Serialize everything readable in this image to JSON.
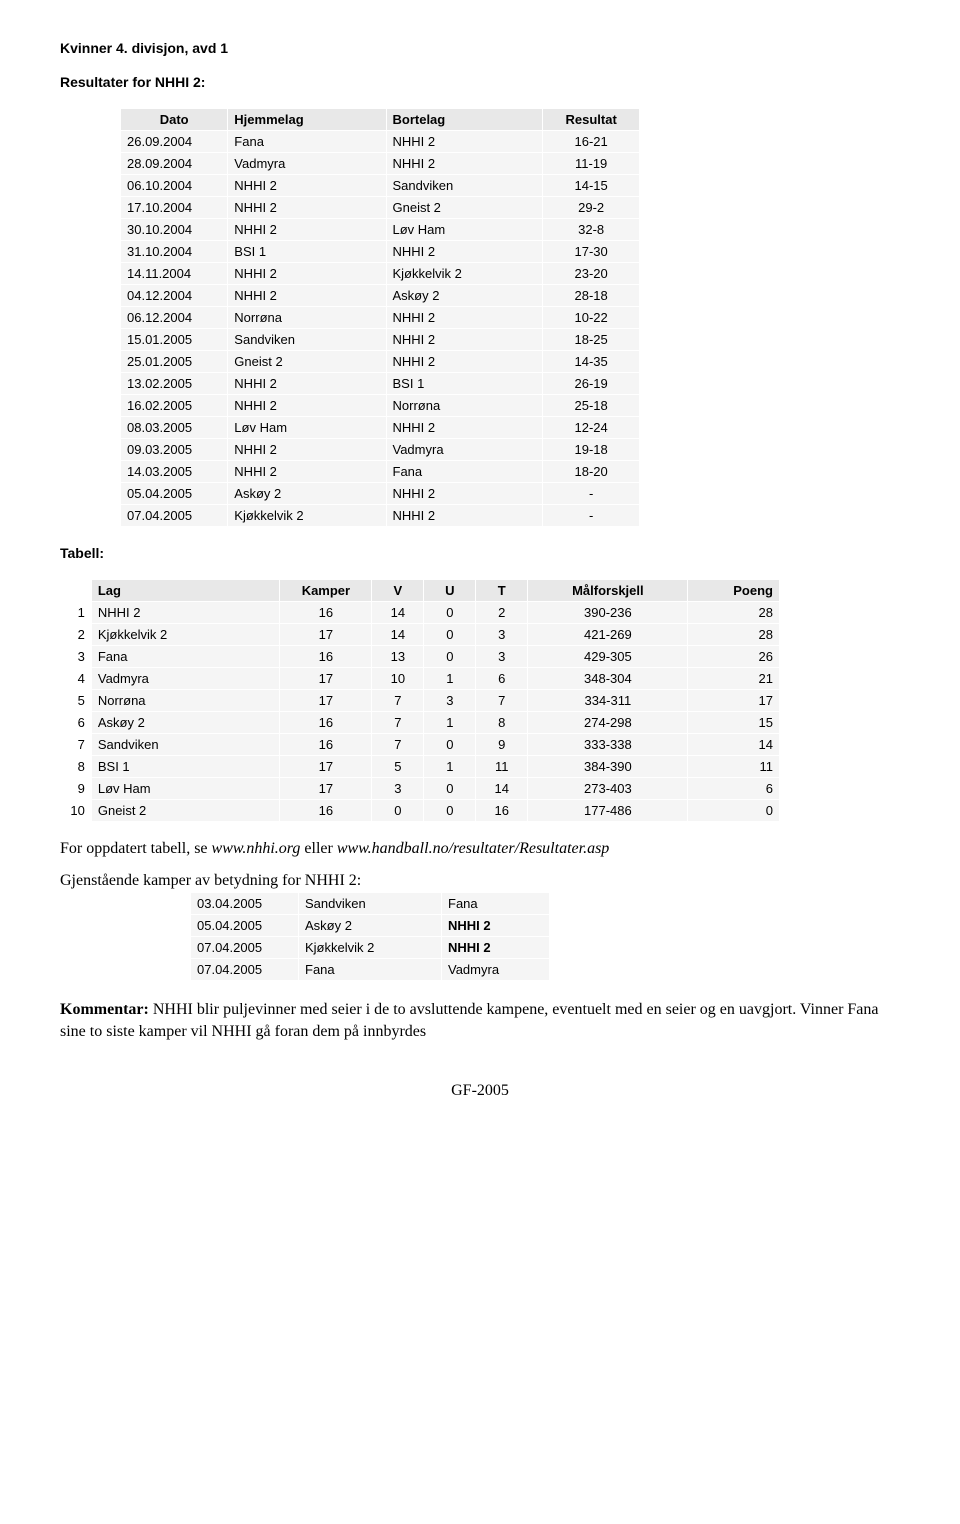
{
  "title": "Kvinner 4. divisjon, avd 1",
  "results_heading": "Resultater for NHHI 2:",
  "results_columns": {
    "date": "Dato",
    "home": "Hjemmelag",
    "away": "Bortelag",
    "result": "Resultat"
  },
  "results": [
    {
      "date": "26.09.2004",
      "home": "Fana",
      "away": "NHHI 2",
      "result": "16-21"
    },
    {
      "date": "28.09.2004",
      "home": "Vadmyra",
      "away": "NHHI 2",
      "result": "11-19"
    },
    {
      "date": "06.10.2004",
      "home": "NHHI 2",
      "away": "Sandviken",
      "result": "14-15"
    },
    {
      "date": "17.10.2004",
      "home": "NHHI 2",
      "away": "Gneist 2",
      "result": "29-2"
    },
    {
      "date": "30.10.2004",
      "home": "NHHI 2",
      "away": "Løv Ham",
      "result": "32-8"
    },
    {
      "date": "31.10.2004",
      "home": "BSI 1",
      "away": "NHHI 2",
      "result": "17-30"
    },
    {
      "date": "14.11.2004",
      "home": "NHHI 2",
      "away": "Kjøkkelvik 2",
      "result": "23-20"
    },
    {
      "date": "04.12.2004",
      "home": "NHHI 2",
      "away": "Askøy 2",
      "result": "28-18"
    },
    {
      "date": "06.12.2004",
      "home": "Norrøna",
      "away": "NHHI 2",
      "result": "10-22"
    },
    {
      "date": "15.01.2005",
      "home": "Sandviken",
      "away": "NHHI 2",
      "result": "18-25"
    },
    {
      "date": "25.01.2005",
      "home": "Gneist 2",
      "away": "NHHI 2",
      "result": "14-35"
    },
    {
      "date": "13.02.2005",
      "home": "NHHI 2",
      "away": "BSI 1",
      "result": "26-19"
    },
    {
      "date": "16.02.2005",
      "home": "NHHI 2",
      "away": "Norrøna",
      "result": "25-18"
    },
    {
      "date": "08.03.2005",
      "home": "Løv Ham",
      "away": "NHHI 2",
      "result": "12-24"
    },
    {
      "date": "09.03.2005",
      "home": "NHHI 2",
      "away": "Vadmyra",
      "result": "19-18"
    },
    {
      "date": "14.03.2005",
      "home": "NHHI 2",
      "away": "Fana",
      "result": "18-20"
    },
    {
      "date": "05.04.2005",
      "home": "Askøy 2",
      "away": "NHHI 2",
      "result": "-"
    },
    {
      "date": "07.04.2005",
      "home": "Kjøkkelvik 2",
      "away": "NHHI 2",
      "result": "-"
    }
  ],
  "standings_heading": "Tabell:",
  "standings_columns": {
    "team": "Lag",
    "played": "Kamper",
    "w": "V",
    "d": "U",
    "l": "T",
    "gd": "Målforskjell",
    "pts": "Poeng"
  },
  "standings": [
    {
      "rank": "1",
      "team": "NHHI 2",
      "p": "16",
      "w": "14",
      "d": "0",
      "l": "2",
      "gd": "390-236",
      "pts": "28"
    },
    {
      "rank": "2",
      "team": "Kjøkkelvik 2",
      "p": "17",
      "w": "14",
      "d": "0",
      "l": "3",
      "gd": "421-269",
      "pts": "28"
    },
    {
      "rank": "3",
      "team": "Fana",
      "p": "16",
      "w": "13",
      "d": "0",
      "l": "3",
      "gd": "429-305",
      "pts": "26"
    },
    {
      "rank": "4",
      "team": "Vadmyra",
      "p": "17",
      "w": "10",
      "d": "1",
      "l": "6",
      "gd": "348-304",
      "pts": "21"
    },
    {
      "rank": "5",
      "team": "Norrøna",
      "p": "17",
      "w": "7",
      "d": "3",
      "l": "7",
      "gd": "334-311",
      "pts": "17"
    },
    {
      "rank": "6",
      "team": "Askøy 2",
      "p": "16",
      "w": "7",
      "d": "1",
      "l": "8",
      "gd": "274-298",
      "pts": "15"
    },
    {
      "rank": "7",
      "team": "Sandviken",
      "p": "16",
      "w": "7",
      "d": "0",
      "l": "9",
      "gd": "333-338",
      "pts": "14"
    },
    {
      "rank": "8",
      "team": "BSI 1",
      "p": "17",
      "w": "5",
      "d": "1",
      "l": "11",
      "gd": "384-390",
      "pts": "11"
    },
    {
      "rank": "9",
      "team": "Løv Ham",
      "p": "17",
      "w": "3",
      "d": "0",
      "l": "14",
      "gd": "273-403",
      "pts": "6"
    },
    {
      "rank": "10",
      "team": "Gneist 2",
      "p": "16",
      "w": "0",
      "d": "0",
      "l": "16",
      "gd": "177-486",
      "pts": "0"
    }
  ],
  "note_prefix": "For oppdatert tabell, se ",
  "note_link1": "www.nhhi.org",
  "note_mid": " eller ",
  "note_link2": "www.handball.no/resultater/Resultater.asp",
  "remaining_heading": "Gjenstående kamper av betydning for NHHI 2:",
  "remaining": [
    {
      "date": "03.04.2005",
      "home": "Sandviken",
      "away": "Fana",
      "bold": false
    },
    {
      "date": "05.04.2005",
      "home": "Askøy 2",
      "away": "NHHI 2",
      "bold": true
    },
    {
      "date": "07.04.2005",
      "home": "Kjøkkelvik 2",
      "away": "NHHI 2",
      "bold": true
    },
    {
      "date": "07.04.2005",
      "home": "Fana",
      "away": "Vadmyra",
      "bold": false
    }
  ],
  "comment_label": "Kommentar:",
  "comment_body": " NHHI blir puljevinner med seier i de to avsluttende kampene, eventuelt med en seier og en uavgjort. Vinner Fana sine to siste kamper vil NHHI gå foran dem på innbyrdes",
  "footer": "GF-2005",
  "colors": {
    "header_bg": "#e8e8e8",
    "cell_bg": "#f5f5f5",
    "text": "#000000",
    "page_bg": "#ffffff"
  }
}
